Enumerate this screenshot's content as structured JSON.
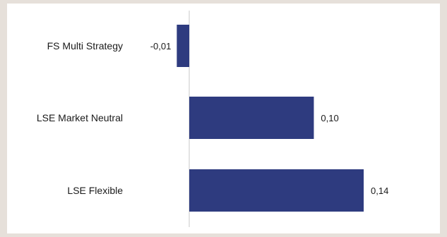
{
  "chart_data": {
    "type": "bar",
    "orientation": "horizontal",
    "categories": [
      "FS Multi Strategy",
      "LSE Market Neutral",
      "LSE Flexible"
    ],
    "values": [
      -0.01,
      0.1,
      0.14
    ],
    "value_labels": [
      "-0,01",
      "0,10",
      "0,14"
    ],
    "bar_color": "#2e3b7f",
    "axis_color": "#c8c8c8",
    "xlim": [
      -0.01,
      0.14
    ],
    "grid": false,
    "legend": "none"
  }
}
